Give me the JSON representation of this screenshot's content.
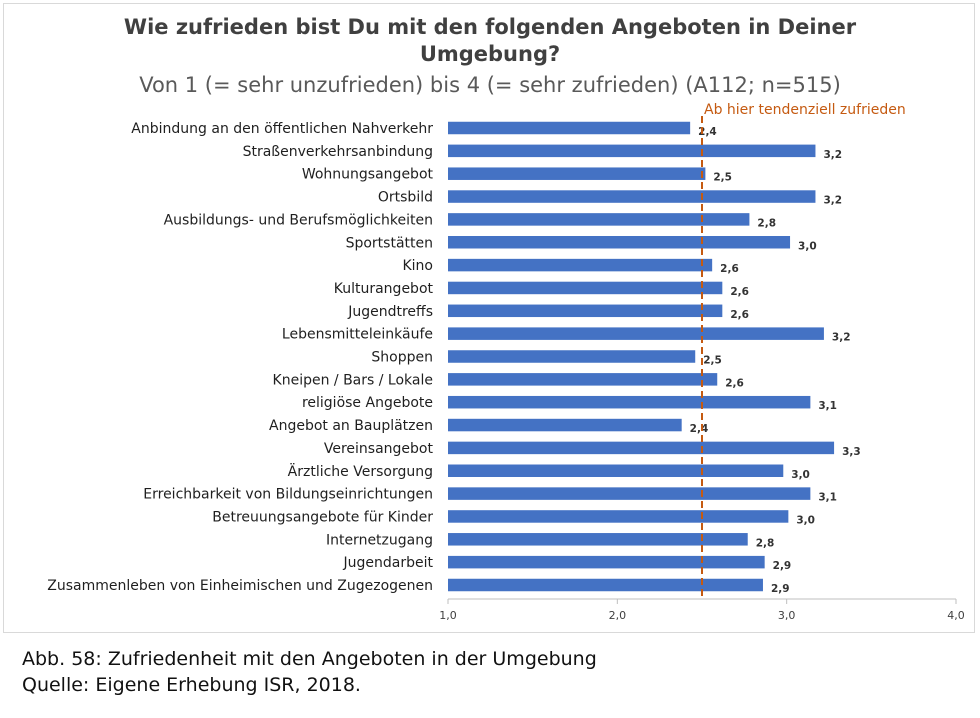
{
  "title_line1": "Wie zufrieden bist Du mit den folgenden Angeboten in Deiner",
  "title_line2": "Umgebung?",
  "subtitle": "Von 1 (= sehr unzufrieden) bis 4 (= sehr zufrieden) (A112; n=515)",
  "caption_line1": "Abb. 58: Zufriedenheit mit den Angeboten in der Umgebung",
  "caption_line2": "Quelle: Eigene Erhebung ISR, 2018.",
  "colors": {
    "bar": "#4472c4",
    "reference_line": "#c55a11"
  },
  "chart_data": {
    "type": "bar",
    "orientation": "horizontal",
    "xlim": [
      1.0,
      4.0
    ],
    "xticks": [
      "1,0",
      "2,0",
      "3,0",
      "4,0"
    ],
    "grid": false,
    "reference_line": {
      "value": 2.5,
      "label": "Ab hier tendenziell zufrieden",
      "style": "dashed"
    },
    "categories": [
      "Anbindung an den öffentlichen Nahverkehr",
      "Straßenverkehrsanbindung",
      "Wohnungsangebot",
      "Ortsbild",
      "Ausbildungs- und Berufsmöglichkeiten",
      "Sportstätten",
      "Kino",
      "Kulturangebot",
      "Jugendtreffs",
      "Lebensmitteleinkäufe",
      "Shoppen",
      "Kneipen / Bars / Lokale",
      "religiöse Angebote",
      "Angebot an Bauplätzen",
      "Vereinsangebot",
      "Ärztliche Versorgung",
      "Erreichbarkeit von Bildungseinrichtungen",
      "Betreuungsangebote für Kinder",
      "Internetzugang",
      "Jugendarbeit",
      "Zusammenleben von Einheimischen und Zugezogenen"
    ],
    "values": [
      2.43,
      3.17,
      2.52,
      3.17,
      2.78,
      3.02,
      2.56,
      2.62,
      2.62,
      3.22,
      2.46,
      2.59,
      3.14,
      2.38,
      3.28,
      2.98,
      3.14,
      3.01,
      2.77,
      2.87,
      2.86
    ],
    "value_labels": [
      "2,4",
      "3,2",
      "2,5",
      "3,2",
      "2,8",
      "3,0",
      "2,6",
      "2,6",
      "2,6",
      "3,2",
      "2,5",
      "2,6",
      "3,1",
      "2,4",
      "3,3",
      "3,0",
      "3,1",
      "3,0",
      "2,8",
      "2,9",
      "2,9"
    ]
  }
}
